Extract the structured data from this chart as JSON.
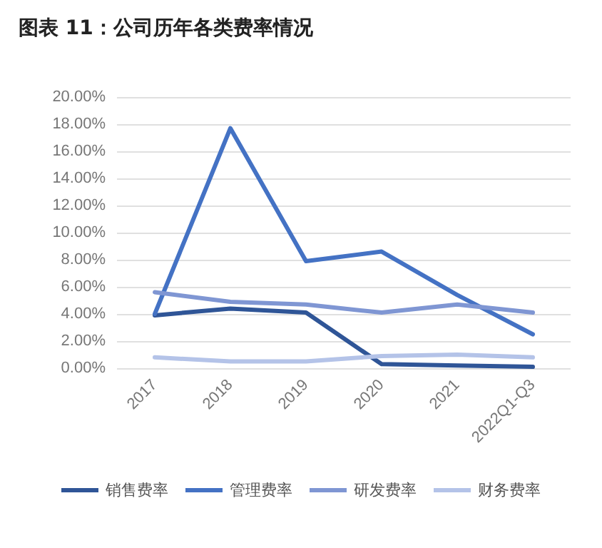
{
  "chart_data": {
    "type": "line",
    "title": "图表 11：公司历年各类费率情况",
    "categories": [
      "2017",
      "2018",
      "2019",
      "2020",
      "2021",
      "2022Q1-Q3"
    ],
    "series": [
      {
        "name": "销售费率",
        "color": "#2f5597",
        "values": [
          3.9,
          4.4,
          4.1,
          0.3,
          0.2,
          0.1
        ]
      },
      {
        "name": "管理费率",
        "color": "#4472c4",
        "values": [
          4.0,
          17.7,
          7.9,
          8.6,
          5.4,
          2.5
        ]
      },
      {
        "name": "研发费率",
        "color": "#7f96d3",
        "values": [
          5.6,
          4.9,
          4.7,
          4.1,
          4.7,
          4.1
        ]
      },
      {
        "name": "财务费率",
        "color": "#b4c3e8",
        "values": [
          0.8,
          0.5,
          0.5,
          0.9,
          1.0,
          0.8
        ]
      }
    ],
    "ylim": [
      0,
      20
    ],
    "yticks": [
      {
        "value": 0,
        "label": "0.00%"
      },
      {
        "value": 2,
        "label": "2.00%"
      },
      {
        "value": 4,
        "label": "4.00%"
      },
      {
        "value": 6,
        "label": "6.00%"
      },
      {
        "value": 8,
        "label": "8.00%"
      },
      {
        "value": 10,
        "label": "10.00%"
      },
      {
        "value": 12,
        "label": "12.00%"
      },
      {
        "value": 14,
        "label": "14.00%"
      },
      {
        "value": 16,
        "label": "16.00%"
      },
      {
        "value": 18,
        "label": "18.00%"
      },
      {
        "value": 20,
        "label": "20.00%"
      }
    ],
    "grid": "y",
    "legend": "bottom",
    "marker": "none",
    "line_style": "solid"
  }
}
